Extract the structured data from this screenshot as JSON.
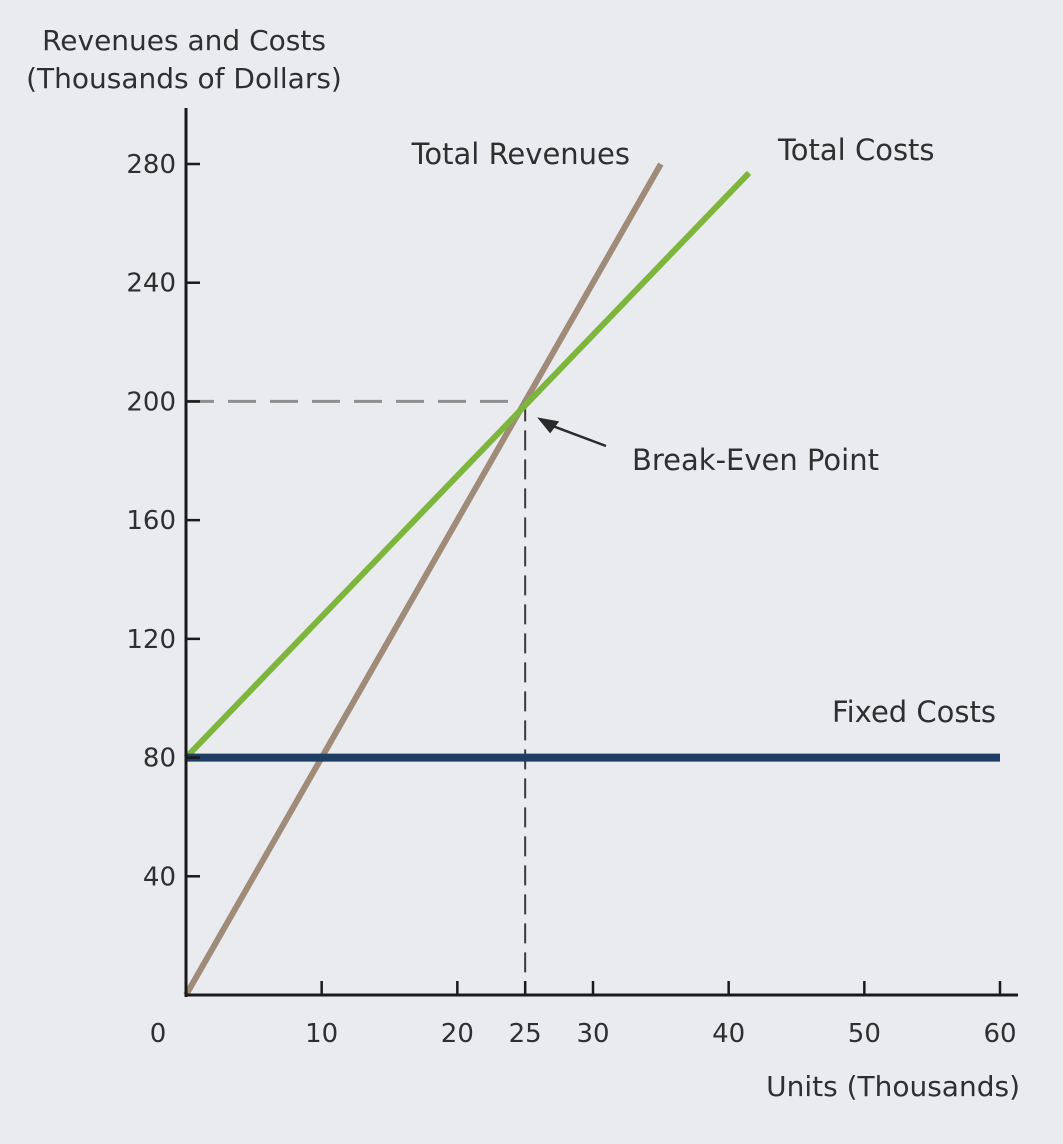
{
  "chart_data": {
    "type": "line",
    "title": "",
    "ylabel_lines": [
      "Revenues and Costs",
      "(Thousands of Dollars)"
    ],
    "xlabel": "Units (Thousands)",
    "xlim": [
      0,
      60
    ],
    "ylim": [
      0,
      280
    ],
    "x_ticks": [
      0,
      10,
      20,
      25,
      30,
      40,
      50,
      60
    ],
    "x_tick_marks": [
      10,
      20,
      25,
      30,
      40,
      50,
      60
    ],
    "y_ticks": [
      40,
      80,
      120,
      160,
      200,
      240,
      280
    ],
    "grid": false,
    "series": [
      {
        "name": "Total Revenues",
        "color": "#a08a78",
        "x": [
          0,
          35
        ],
        "y": [
          0,
          280
        ]
      },
      {
        "name": "Total Costs",
        "color": "#7db53d",
        "x": [
          0,
          41.5
        ],
        "y": [
          80,
          277
        ]
      },
      {
        "name": "Fixed Costs",
        "color": "#1e3f63",
        "x": [
          0,
          60
        ],
        "y": [
          80,
          80
        ]
      }
    ],
    "annotations": [
      {
        "text": "Break-Even Point",
        "x": 25,
        "y": 200
      }
    ],
    "reference_lines": {
      "x": 25,
      "y": 200,
      "style": "dashed"
    }
  }
}
